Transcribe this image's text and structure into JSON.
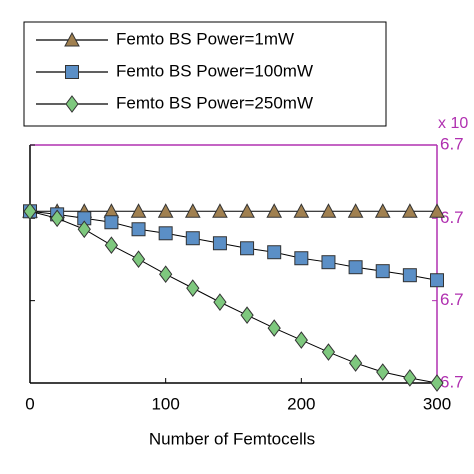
{
  "chart_data": {
    "type": "line",
    "x_label": "Number of Femtocells",
    "annotation": "x 10",
    "x": [
      0,
      20,
      40,
      60,
      80,
      100,
      120,
      140,
      160,
      180,
      200,
      220,
      240,
      260,
      280,
      300
    ],
    "xlim": [
      0,
      300
    ],
    "xticks": [
      0,
      100,
      200,
      300
    ],
    "ylim": [
      6.7,
      6.7289
    ],
    "yticks": [
      {
        "value": 6.7,
        "label": "6.7"
      },
      {
        "value": 6.71,
        "label": "6.7"
      },
      {
        "value": 6.72,
        "label": "6.7"
      },
      {
        "value": 6.7289,
        "label": "6.7"
      }
    ],
    "axis_color": "#b030b0",
    "series": [
      {
        "name": "Femto BS Power=1mW",
        "color": "#a08050",
        "marker": "triangle",
        "values": [
          6.72085,
          6.72085,
          6.72085,
          6.72085,
          6.72085,
          6.72085,
          6.72085,
          6.72085,
          6.72085,
          6.72085,
          6.72085,
          6.72085,
          6.72085,
          6.72085,
          6.72085,
          6.72085
        ]
      },
      {
        "name": "Femto BS Power=100mW",
        "color": "#5b8fc6",
        "marker": "square",
        "values": [
          6.72085,
          6.72048,
          6.72,
          6.71952,
          6.71867,
          6.71818,
          6.71758,
          6.71697,
          6.71636,
          6.71588,
          6.71515,
          6.71467,
          6.71406,
          6.71358,
          6.71309,
          6.71248
        ]
      },
      {
        "name": "Femto BS Power=250mW",
        "color": "#7ec87e",
        "marker": "diamond",
        "values": [
          6.72085,
          6.72,
          6.71867,
          6.71673,
          6.71503,
          6.71321,
          6.71152,
          6.70982,
          6.70824,
          6.70667,
          6.70521,
          6.70376,
          6.70242,
          6.70133,
          6.70061,
          6.7
        ]
      }
    ]
  }
}
